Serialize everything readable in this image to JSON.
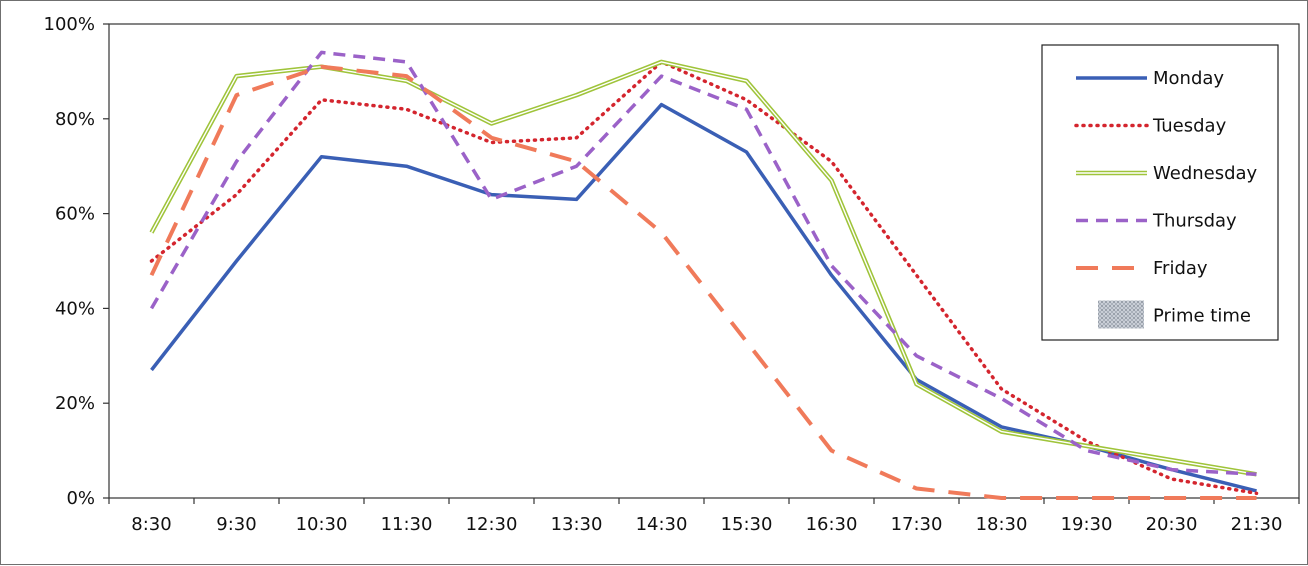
{
  "chart_data": {
    "type": "line",
    "title": "",
    "xlabel": "",
    "ylabel": "",
    "categories": [
      "8:30",
      "9:30",
      "10:30",
      "11:30",
      "12:30",
      "13:30",
      "14:30",
      "15:30",
      "16:30",
      "17:30",
      "18:30",
      "19:30",
      "20:30",
      "21:30"
    ],
    "y_ticks": [
      "0%",
      "20%",
      "40%",
      "60%",
      "80%",
      "100%"
    ],
    "ylim": [
      0,
      100
    ],
    "y_unit": "%",
    "grid": false,
    "legend_position": "top-right",
    "series": [
      {
        "name": "Monday",
        "color": "#3a5fb5",
        "style": "solid",
        "values": [
          27,
          50,
          72,
          70,
          64,
          63,
          83,
          73,
          47,
          25,
          15,
          11,
          6,
          1.5
        ]
      },
      {
        "name": "Tuesday",
        "color": "#d4252e",
        "style": "dotted",
        "values": [
          50,
          64,
          84,
          82,
          75,
          76,
          92,
          84,
          71,
          47,
          23,
          12,
          4,
          1
        ]
      },
      {
        "name": "Wednesday",
        "color": "#9fc43a",
        "style": "double",
        "values": [
          56,
          89,
          91,
          88,
          79,
          85,
          92,
          88,
          67,
          24,
          14,
          11,
          8,
          5
        ]
      },
      {
        "name": "Thursday",
        "color": "#9b62c8",
        "style": "dashed",
        "values": [
          40,
          71,
          94,
          92,
          63,
          70,
          89,
          82,
          49,
          30,
          21,
          10,
          6,
          5
        ]
      },
      {
        "name": "Friday",
        "color": "#f07a5a",
        "style": "long-dash",
        "values": [
          47,
          85,
          91,
          89,
          76,
          71,
          56,
          33,
          10,
          2,
          0,
          0,
          0,
          0
        ]
      }
    ],
    "legend_extra": {
      "name": "Prime time",
      "pattern": "hatched-gray"
    }
  }
}
